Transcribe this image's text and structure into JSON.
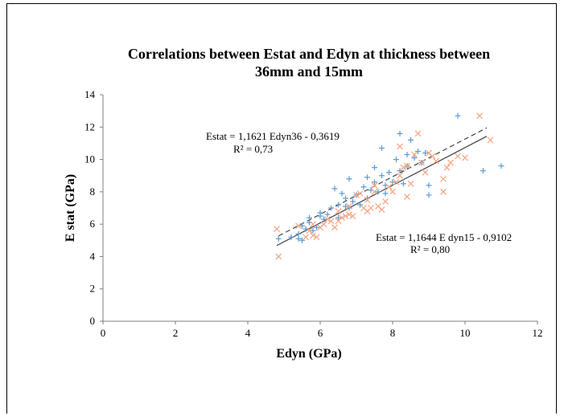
{
  "chart_data": {
    "type": "scatter",
    "title_line1": "Correlations between Estat and Edyn at thickness between",
    "title_line2": "36mm and 15mm",
    "xlabel": "Edyn (GPa)",
    "ylabel": "E stat (GPa)",
    "xlim": [
      0,
      12
    ],
    "ylim": [
      0,
      14
    ],
    "xticks": [
      "0",
      "2",
      "4",
      "6",
      "8",
      "10",
      "12"
    ],
    "yticks": [
      "0",
      "2",
      "4",
      "6",
      "8",
      "10",
      "12",
      "14"
    ],
    "grid": false,
    "legend": "none",
    "series": [
      {
        "marker": "plus",
        "color": "#5B9BD5",
        "trendline": "dashed",
        "equation": "Estat = 1,1621 Edyn36 - 0,3619",
        "r2": "R² = 0,73",
        "slope": 1.1621,
        "intercept": -0.3619,
        "points": [
          [
            4.85,
            5.1
          ],
          [
            5.2,
            5.2
          ],
          [
            5.4,
            5.1
          ],
          [
            5.4,
            5.4
          ],
          [
            5.5,
            5.0
          ],
          [
            5.5,
            5.9
          ],
          [
            5.6,
            5.7
          ],
          [
            5.7,
            6.1
          ],
          [
            5.7,
            6.4
          ],
          [
            5.8,
            5.6
          ],
          [
            5.9,
            5.8
          ],
          [
            6.0,
            6.5
          ],
          [
            6.0,
            6.7
          ],
          [
            6.1,
            6.3
          ],
          [
            6.2,
            6.6
          ],
          [
            6.3,
            7.0
          ],
          [
            6.4,
            8.2
          ],
          [
            6.5,
            7.2
          ],
          [
            6.5,
            6.4
          ],
          [
            6.6,
            7.9
          ],
          [
            6.7,
            7.1
          ],
          [
            6.7,
            7.6
          ],
          [
            6.8,
            7.0
          ],
          [
            6.8,
            8.8
          ],
          [
            6.9,
            7.4
          ],
          [
            7.0,
            7.8
          ],
          [
            7.1,
            7.2
          ],
          [
            7.2,
            8.3
          ],
          [
            7.3,
            8.9
          ],
          [
            7.3,
            7.6
          ],
          [
            7.4,
            8.1
          ],
          [
            7.5,
            9.5
          ],
          [
            7.5,
            8.6
          ],
          [
            7.6,
            8.0
          ],
          [
            7.7,
            10.7
          ],
          [
            7.7,
            9.0
          ],
          [
            7.8,
            8.4
          ],
          [
            7.8,
            7.9
          ],
          [
            7.9,
            9.2
          ],
          [
            8.0,
            8.6
          ],
          [
            8.1,
            10.0
          ],
          [
            8.2,
            11.6
          ],
          [
            8.2,
            9.3
          ],
          [
            8.3,
            8.5
          ],
          [
            8.4,
            10.3
          ],
          [
            8.4,
            9.6
          ],
          [
            8.5,
            11.2
          ],
          [
            8.6,
            10.1
          ],
          [
            8.7,
            10.5
          ],
          [
            8.8,
            9.8
          ],
          [
            8.9,
            10.4
          ],
          [
            9.0,
            7.8
          ],
          [
            9.0,
            8.4
          ],
          [
            9.8,
            12.7
          ],
          [
            10.5,
            9.3
          ],
          [
            11.0,
            9.6
          ]
        ]
      },
      {
        "marker": "cross",
        "color": "#F4A582",
        "trendline": "solid",
        "equation": "Estat = 1,1644 E dyn15 - 0,9102",
        "r2": "R² = 0,80",
        "slope": 1.1644,
        "intercept": -0.9102,
        "points": [
          [
            4.8,
            5.7
          ],
          [
            4.85,
            4.0
          ],
          [
            5.4,
            5.9
          ],
          [
            5.6,
            5.2
          ],
          [
            5.7,
            5.6
          ],
          [
            5.8,
            6.0
          ],
          [
            5.8,
            5.3
          ],
          [
            5.9,
            5.2
          ],
          [
            6.0,
            5.8
          ],
          [
            6.1,
            6.0
          ],
          [
            6.2,
            6.3
          ],
          [
            6.3,
            6.2
          ],
          [
            6.4,
            5.8
          ],
          [
            6.5,
            6.2
          ],
          [
            6.5,
            6.8
          ],
          [
            6.6,
            6.4
          ],
          [
            6.7,
            6.5
          ],
          [
            6.8,
            6.6
          ],
          [
            6.8,
            7.1
          ],
          [
            6.9,
            6.5
          ],
          [
            7.0,
            7.8
          ],
          [
            7.1,
            7.9
          ],
          [
            7.2,
            7.0
          ],
          [
            7.3,
            6.8
          ],
          [
            7.3,
            7.5
          ],
          [
            7.4,
            7.0
          ],
          [
            7.5,
            8.0
          ],
          [
            7.5,
            8.4
          ],
          [
            7.6,
            7.1
          ],
          [
            7.7,
            6.9
          ],
          [
            7.8,
            7.4
          ],
          [
            7.9,
            8.3
          ],
          [
            8.0,
            8.0
          ],
          [
            8.1,
            8.6
          ],
          [
            8.2,
            9.0
          ],
          [
            8.2,
            10.8
          ],
          [
            8.3,
            9.5
          ],
          [
            8.4,
            7.7
          ],
          [
            8.4,
            9.6
          ],
          [
            8.5,
            8.5
          ],
          [
            8.6,
            10.3
          ],
          [
            8.7,
            11.6
          ],
          [
            8.8,
            9.8
          ],
          [
            8.9,
            9.2
          ],
          [
            9.0,
            10.4
          ],
          [
            9.1,
            10.2
          ],
          [
            9.2,
            9.9
          ],
          [
            9.4,
            8.0
          ],
          [
            9.4,
            8.8
          ],
          [
            9.5,
            9.5
          ],
          [
            9.6,
            9.8
          ],
          [
            9.8,
            10.2
          ],
          [
            10.0,
            10.1
          ],
          [
            10.4,
            12.7
          ],
          [
            10.7,
            11.2
          ]
        ]
      }
    ]
  }
}
